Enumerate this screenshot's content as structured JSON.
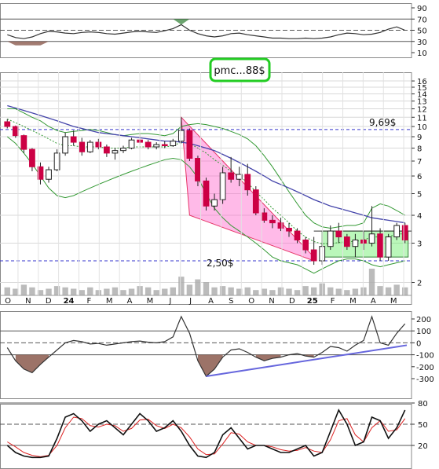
{
  "chart_data": [
    {
      "panel": "rsi",
      "type": "line",
      "yticks": [
        "90",
        "70",
        "50",
        "30",
        "10"
      ],
      "reference_levels": [
        70,
        50,
        30
      ],
      "series": [
        {
          "values": [
            42,
            37,
            35,
            38,
            44,
            48,
            47,
            45,
            44,
            46,
            47,
            46,
            44,
            43,
            45,
            47,
            48,
            47,
            46,
            49,
            53,
            60,
            50,
            44,
            40,
            38,
            40,
            44,
            45,
            42,
            40,
            38,
            36,
            36,
            35,
            35,
            36,
            35,
            36,
            38,
            42,
            45,
            44,
            42,
            43,
            46,
            52,
            56,
            50
          ]
        }
      ]
    },
    {
      "panel": "price",
      "type": "candlestick",
      "scale": "log",
      "yticks": [
        "16",
        "15",
        "14",
        "13",
        "12",
        "11",
        "10",
        "9",
        "8",
        "7",
        "6",
        "5",
        "4",
        "3",
        "2"
      ],
      "months": [
        "O",
        "N",
        "D",
        "24",
        "F",
        "M",
        "A",
        "M",
        "J",
        "J",
        "A",
        "S",
        "O",
        "N",
        "D",
        "25",
        "F",
        "M",
        "A",
        "M"
      ],
      "candles": [
        [
          10.5,
          10.8,
          9.8,
          10.0
        ],
        [
          10.0,
          10.1,
          8.9,
          9.1
        ],
        [
          9.1,
          9.2,
          7.6,
          7.9
        ],
        [
          7.9,
          8.0,
          6.3,
          6.6
        ],
        [
          6.6,
          6.9,
          5.5,
          5.8
        ],
        [
          5.8,
          6.6,
          5.6,
          6.4
        ],
        [
          6.4,
          7.9,
          6.3,
          7.6
        ],
        [
          7.6,
          9.4,
          7.4,
          9.0
        ],
        [
          9.0,
          9.6,
          8.2,
          8.5
        ],
        [
          8.5,
          8.9,
          7.4,
          7.7
        ],
        [
          7.7,
          8.7,
          7.6,
          8.5
        ],
        [
          8.5,
          8.8,
          7.9,
          8.1
        ],
        [
          8.1,
          8.3,
          7.3,
          7.6
        ],
        [
          7.6,
          8.0,
          7.1,
          7.8
        ],
        [
          7.8,
          8.2,
          7.6,
          8.0
        ],
        [
          8.0,
          8.9,
          7.9,
          8.7
        ],
        [
          8.7,
          9.3,
          8.3,
          8.5
        ],
        [
          8.5,
          8.7,
          7.9,
          8.1
        ],
        [
          8.1,
          8.5,
          7.9,
          8.3
        ],
        [
          8.3,
          8.6,
          8.0,
          8.2
        ],
        [
          8.2,
          8.8,
          8.1,
          8.6
        ],
        [
          8.6,
          11.0,
          8.4,
          9.6
        ],
        [
          9.6,
          9.8,
          7.0,
          7.2
        ],
        [
          7.2,
          7.4,
          5.4,
          5.7
        ],
        [
          5.7,
          5.9,
          4.2,
          4.4
        ],
        [
          4.4,
          5.0,
          4.2,
          4.7
        ],
        [
          4.7,
          6.6,
          4.5,
          6.2
        ],
        [
          6.2,
          7.3,
          5.6,
          5.8
        ],
        [
          5.8,
          6.6,
          5.4,
          6.1
        ],
        [
          6.1,
          6.8,
          4.9,
          5.2
        ],
        [
          5.2,
          5.4,
          4.0,
          4.1
        ],
        [
          4.1,
          4.3,
          3.7,
          3.8
        ],
        [
          3.8,
          4.0,
          3.5,
          3.7
        ],
        [
          3.7,
          3.9,
          3.4,
          3.5
        ],
        [
          3.5,
          3.7,
          3.2,
          3.4
        ],
        [
          3.4,
          3.5,
          3.0,
          3.1
        ],
        [
          3.1,
          3.2,
          2.7,
          2.8
        ],
        [
          2.8,
          3.2,
          2.4,
          2.5
        ],
        [
          2.5,
          3.0,
          2.4,
          2.9
        ],
        [
          2.9,
          3.6,
          2.8,
          3.4
        ],
        [
          3.4,
          3.7,
          3.0,
          3.2
        ],
        [
          3.2,
          3.3,
          2.8,
          2.9
        ],
        [
          2.9,
          3.3,
          2.6,
          3.1
        ],
        [
          3.1,
          3.4,
          2.8,
          3.0
        ],
        [
          3.0,
          4.4,
          2.9,
          3.3
        ],
        [
          3.3,
          3.5,
          2.5,
          2.6
        ],
        [
          2.6,
          3.3,
          2.5,
          3.2
        ],
        [
          3.2,
          3.7,
          3.1,
          3.6
        ],
        [
          3.6,
          3.7,
          3.0,
          3.1
        ]
      ],
      "volume": [
        0.3,
        0.25,
        0.4,
        0.3,
        0.2,
        0.25,
        0.35,
        0.3,
        0.25,
        0.2,
        0.3,
        0.2,
        0.25,
        0.3,
        0.2,
        0.25,
        0.35,
        0.3,
        0.2,
        0.25,
        0.3,
        0.7,
        0.4,
        0.6,
        0.5,
        0.3,
        0.35,
        0.3,
        0.25,
        0.3,
        0.2,
        0.25,
        0.2,
        0.3,
        0.25,
        0.2,
        0.35,
        0.3,
        0.45,
        0.3,
        0.25,
        0.2,
        0.25,
        0.3,
        1.0,
        0.35,
        0.3,
        0.4,
        0.3
      ],
      "bollinger_upper": [
        12.0,
        12.0,
        11.5,
        11.0,
        10.6,
        10.0,
        9.6,
        9.4,
        9.5,
        9.6,
        9.7,
        9.6,
        9.4,
        9.2,
        9.1,
        9.2,
        9.3,
        9.3,
        9.2,
        9.1,
        9.3,
        10.0,
        10.2,
        10.3,
        10.2,
        10.0,
        9.8,
        9.5,
        9.2,
        8.8,
        8.2,
        7.4,
        6.6,
        5.8,
        5.1,
        4.5,
        4.0,
        3.7,
        3.55,
        3.5,
        3.55,
        3.6,
        3.6,
        3.7,
        4.3,
        4.5,
        4.4,
        4.2,
        4.0
      ],
      "bollinger_middle": [
        10.8,
        10.4,
        10.0,
        9.6,
        9.2,
        8.8,
        8.4,
        8.2,
        8.2,
        8.1,
        8.1,
        8.1,
        8.0,
        8.0,
        8.0,
        8.1,
        8.1,
        8.1,
        8.1,
        8.1,
        8.2,
        8.5,
        8.4,
        8.0,
        7.6,
        7.1,
        6.7,
        6.3,
        6.0,
        5.6,
        5.1,
        4.7,
        4.3,
        4.0,
        3.7,
        3.4,
        3.2,
        3.05,
        2.98,
        2.98,
        3.02,
        3.05,
        3.05,
        3.1,
        3.2,
        3.2,
        3.2,
        3.3,
        3.3
      ],
      "bollinger_lower": [
        9.0,
        8.4,
        7.6,
        6.8,
        6.0,
        5.3,
        4.9,
        4.8,
        4.9,
        5.1,
        5.3,
        5.5,
        5.7,
        5.9,
        6.1,
        6.3,
        6.5,
        6.7,
        6.9,
        7.1,
        7.2,
        7.1,
        6.6,
        5.9,
        5.0,
        4.3,
        3.9,
        3.6,
        3.4,
        3.2,
        3.0,
        2.8,
        2.6,
        2.5,
        2.45,
        2.4,
        2.3,
        2.2,
        2.3,
        2.4,
        2.5,
        2.55,
        2.55,
        2.5,
        2.4,
        2.35,
        2.4,
        2.45,
        2.5
      ],
      "moving_average": [
        12.4,
        12.1,
        11.8,
        11.5,
        11.2,
        10.9,
        10.6,
        10.3,
        10.0,
        9.8,
        9.6,
        9.4,
        9.3,
        9.2,
        9.1,
        9.0,
        8.9,
        8.8,
        8.7,
        8.6,
        8.6,
        8.5,
        8.4,
        8.2,
        8.0,
        7.8,
        7.5,
        7.2,
        6.9,
        6.6,
        6.3,
        6.0,
        5.7,
        5.5,
        5.3,
        5.1,
        4.9,
        4.7,
        4.55,
        4.4,
        4.3,
        4.2,
        4.1,
        4.0,
        3.9,
        3.85,
        3.8,
        3.75,
        3.7
      ],
      "annotations": {
        "high_level_label": "9,69$",
        "high_level_value": 9.69,
        "low_level_label": "2,50$",
        "low_level_value": 2.5,
        "badge": "pmc...88$"
      },
      "colors": {
        "up": "#2d2d2d",
        "down": "#cc0044",
        "falling_channel": "#ff66cc",
        "range_box": "#66ee66",
        "level_line": "#3333cc",
        "bollinger": "#339933",
        "moving_average": "#4444aa",
        "badge_border": "#22cc22"
      }
    },
    {
      "panel": "cci",
      "type": "area",
      "yticks": [
        "200",
        "100",
        "0",
        "-100",
        "-200",
        "-300"
      ],
      "reference_levels": [
        100,
        0,
        -100
      ],
      "series": [
        {
          "values": [
            -40,
            -150,
            -220,
            -250,
            -180,
            -120,
            -60,
            0,
            20,
            10,
            -10,
            -5,
            -20,
            -10,
            0,
            10,
            15,
            5,
            0,
            10,
            50,
            220,
            80,
            -150,
            -280,
            -220,
            -120,
            -60,
            -50,
            -80,
            -120,
            -150,
            -130,
            -120,
            -100,
            -90,
            -110,
            -120,
            -80,
            -30,
            -40,
            -70,
            -20,
            20,
            220,
            0,
            -20,
            80,
            160
          ]
        }
      ]
    },
    {
      "panel": "stochastic",
      "type": "line",
      "yticks": [
        "80",
        "50",
        "20"
      ],
      "reference_levels": [
        80,
        50,
        20
      ],
      "series": [
        {
          "values": [
            20,
            10,
            5,
            3,
            3,
            5,
            30,
            60,
            65,
            55,
            40,
            50,
            55,
            45,
            35,
            50,
            65,
            55,
            40,
            45,
            55,
            40,
            20,
            5,
            3,
            10,
            35,
            45,
            30,
            15,
            20,
            20,
            15,
            10,
            10,
            15,
            20,
            5,
            10,
            40,
            70,
            50,
            20,
            25,
            60,
            55,
            30,
            45,
            70
          ]
        },
        {
          "values": [
            25,
            18,
            10,
            6,
            4,
            6,
            20,
            45,
            60,
            58,
            48,
            46,
            50,
            48,
            40,
            44,
            56,
            57,
            48,
            44,
            50,
            45,
            32,
            15,
            7,
            8,
            22,
            38,
            36,
            25,
            20,
            20,
            18,
            14,
            12,
            13,
            17,
            12,
            10,
            28,
            55,
            58,
            35,
            25,
            45,
            55,
            40,
            42,
            58
          ]
        }
      ]
    }
  ]
}
